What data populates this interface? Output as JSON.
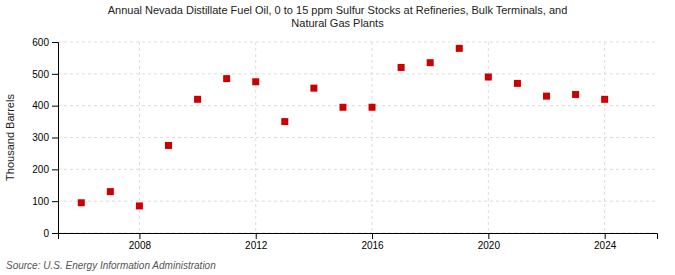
{
  "chart_data": {
    "type": "scatter",
    "title": "Annual Nevada Distillate Fuel Oil, 0 to 15 ppm Sulfur Stocks at Refineries, Bulk Terminals, and\nNatural Gas Plants",
    "ylabel": "Thousand Barrels",
    "source": "Source: U.S. Energy Information Administration",
    "x": [
      2006,
      2007,
      2008,
      2009,
      2010,
      2011,
      2012,
      2013,
      2014,
      2015,
      2016,
      2017,
      2018,
      2019,
      2020,
      2021,
      2022,
      2023,
      2024
    ],
    "values": [
      95,
      130,
      85,
      275,
      420,
      485,
      475,
      350,
      455,
      395,
      395,
      520,
      535,
      580,
      490,
      470,
      430,
      435,
      420
    ],
    "color": "#cc0000",
    "marker": "square",
    "xlim": [
      2005.2,
      2025.8
    ],
    "xticks": [
      2008,
      2012,
      2016,
      2020,
      2024
    ],
    "ylim": [
      0,
      600
    ],
    "yticks": [
      0,
      100,
      200,
      300,
      400,
      500,
      600
    ],
    "grid": true
  }
}
